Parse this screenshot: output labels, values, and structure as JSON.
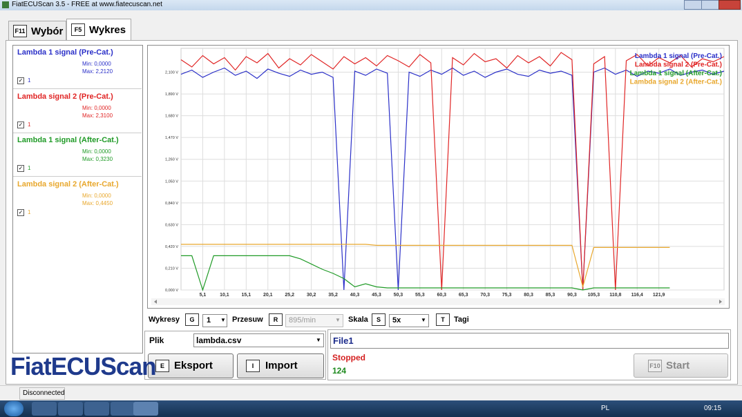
{
  "window": {
    "title": "FiatECUScan 3.5 - FREE at www.fiatecuscan.net"
  },
  "tabs": [
    {
      "key": "F11",
      "label": "Wybór"
    },
    {
      "key": "F5",
      "label": "Wykres"
    }
  ],
  "signals": [
    {
      "name": "Lambda 1 signal (Pre-Cat.)",
      "min": "Min: 0,0000",
      "max": "Max: 2,2120",
      "checkbox_label": "1"
    },
    {
      "name": "Lambda signal 2 (Pre-Cat.)",
      "min": "Min: 0,0000",
      "max": "Max: 2,3100",
      "checkbox_label": "1"
    },
    {
      "name": "Lambda 1 signal (After-Cat.)",
      "min": "Min: 0,0000",
      "max": "Max: 0,3230",
      "checkbox_label": "1"
    },
    {
      "name": "Lambda signal 2 (After-Cat.)",
      "min": "Min: 0,0000",
      "max": "Max: 0,4450",
      "checkbox_label": "1"
    }
  ],
  "chart_data": {
    "type": "line",
    "categories": [
      null,
      null,
      "5,1",
      null,
      "10,1",
      null,
      "15,1",
      null,
      "20,1",
      null,
      "25,2",
      null,
      "30,2",
      null,
      "35,2",
      null,
      "40,3",
      null,
      "45,3",
      null,
      "50,3",
      null,
      "55,3",
      null,
      "60,3",
      null,
      "65,3",
      null,
      "70,3",
      null,
      "75,3",
      null,
      "80,3",
      null,
      "85,3",
      null,
      "90,3",
      null,
      "105,3",
      null,
      "110,8",
      null,
      "116,4",
      null,
      "121,9",
      null,
      null,
      null,
      null,
      null,
      null
    ],
    "series": [
      {
        "name": "Lambda 1 signal (Pre-Cat.)",
        "color": "#2a2fc8",
        "values": [
          2.08,
          2.12,
          2.05,
          2.1,
          2.14,
          2.07,
          2.11,
          2.04,
          2.13,
          2.09,
          2.06,
          2.12,
          2.08,
          2.1,
          2.05,
          0.0,
          2.11,
          2.07,
          2.13,
          2.09,
          0.0,
          2.1,
          2.06,
          2.12,
          2.08,
          2.14,
          2.07,
          2.11,
          2.05,
          2.1,
          2.13,
          2.08,
          2.06,
          2.12,
          2.09,
          2.11,
          2.07,
          0.0,
          2.1,
          2.14,
          2.08,
          2.12,
          2.06,
          2.11,
          2.09,
          2.13,
          2.07,
          2.1,
          2.12,
          2.08,
          2.11
        ]
      },
      {
        "name": "Lambda signal 2 (Pre-Cat.)",
        "color": "#e02424",
        "values": [
          2.22,
          2.15,
          2.26,
          2.18,
          2.24,
          2.12,
          2.25,
          2.19,
          2.28,
          2.14,
          2.23,
          2.17,
          2.27,
          2.2,
          2.13,
          2.25,
          2.18,
          2.24,
          2.16,
          2.26,
          2.21,
          2.15,
          2.27,
          2.19,
          0.0,
          2.24,
          2.17,
          2.28,
          2.2,
          2.23,
          2.14,
          2.26,
          2.19,
          2.25,
          2.16,
          2.29,
          2.22,
          0.0,
          2.18,
          2.25,
          0.0,
          2.21,
          2.27,
          2.16,
          2.24,
          2.19,
          2.26,
          2.15,
          2.23,
          2.2,
          2.25
        ]
      },
      {
        "name": "Lambda 1 signal (After-Cat.)",
        "color": "#1f9a26",
        "values": [
          0.33,
          0.33,
          0.0,
          0.33,
          0.33,
          0.33,
          0.33,
          0.33,
          0.33,
          0.33,
          0.33,
          0.3,
          0.25,
          0.2,
          0.16,
          0.11,
          0.03,
          0.06,
          0.03,
          0.02,
          0.02,
          0.02,
          0.02,
          0.02,
          0.02,
          0.02,
          0.02,
          0.02,
          0.02,
          0.02,
          0.02,
          0.02,
          0.02,
          0.02,
          0.02,
          0.02,
          0.02,
          0.0,
          0.02,
          0.02,
          0.02,
          0.02,
          0.02,
          0.02,
          0.02,
          0.02,
          null,
          null,
          null,
          null,
          null
        ]
      },
      {
        "name": "Lambda signal 2 (After-Cat.)",
        "color": "#e8a72c",
        "values": [
          0.44,
          0.44,
          0.44,
          0.44,
          0.44,
          0.44,
          0.44,
          0.44,
          0.44,
          0.44,
          0.44,
          0.44,
          0.44,
          0.44,
          0.44,
          0.44,
          0.44,
          0.44,
          0.43,
          0.43,
          0.43,
          0.43,
          0.43,
          0.43,
          0.43,
          0.43,
          0.43,
          0.43,
          0.43,
          0.43,
          0.43,
          0.43,
          0.43,
          0.43,
          0.43,
          0.43,
          0.43,
          0.03,
          0.41,
          0.41,
          0.41,
          0.41,
          0.41,
          0.41,
          0.41,
          0.41,
          null,
          null,
          null,
          null,
          null
        ]
      }
    ],
    "ylim": [
      0,
      2.33
    ],
    "yticks": [
      {
        "value": 0,
        "label": "0,000 V"
      },
      {
        "value": 0.21,
        "label": "0,210 V"
      },
      {
        "value": 0.42,
        "label": "0,420 V"
      },
      {
        "value": 0.63,
        "label": "0,630 V"
      },
      {
        "value": 0.84,
        "label": "0,840 V"
      },
      {
        "value": 1.05,
        "label": "1,050 V"
      },
      {
        "value": 1.26,
        "label": "1,260 V"
      },
      {
        "value": 1.47,
        "label": "1,470 V"
      },
      {
        "value": 1.68,
        "label": "1,680 V"
      },
      {
        "value": 1.89,
        "label": "1,890 V"
      },
      {
        "value": 2.1,
        "label": "2,100 V"
      }
    ],
    "grid": true,
    "legend": "top-right"
  },
  "controls": {
    "charts_label": "Wykresy",
    "charts_key": "G",
    "charts_value": "1",
    "shift_label": "Przesuw",
    "shift_key": "R",
    "shift_value": "895/min",
    "scale_label": "Skala",
    "scale_key": "S",
    "scale_value": "5x",
    "tags_key": "T",
    "tags_label": "Tagi"
  },
  "file": {
    "label": "Plik",
    "value": "lambda.csv",
    "export_key": "E",
    "export": "Eksport",
    "import_key": "I",
    "import": "Import"
  },
  "session": {
    "name": "File1",
    "state": "Stopped",
    "count": "124",
    "start_key": "F10",
    "start": "Start"
  },
  "logo": "FiatECUScan",
  "status": "Disconnected",
  "taskbar": {
    "language": "PL",
    "clock": "09:15"
  }
}
